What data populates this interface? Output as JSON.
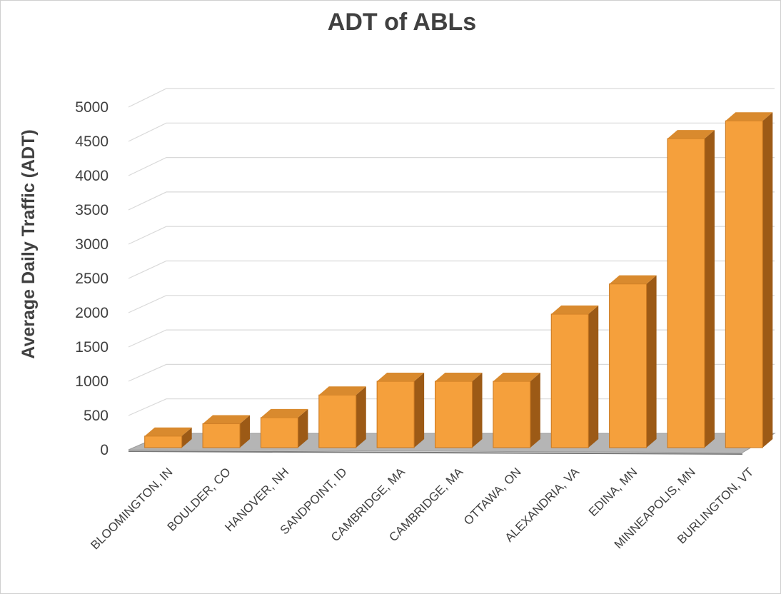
{
  "chart_data": {
    "type": "bar",
    "title": "ADT of ABLs",
    "xlabel": "",
    "ylabel": "Average Daily Traffic (ADT)",
    "ylim": [
      0,
      5000
    ],
    "yticks": [
      "0",
      "500",
      "1000",
      "1500",
      "2000",
      "2500",
      "3000",
      "3500",
      "4000",
      "4500",
      "5000"
    ],
    "grid": true,
    "three_d": true,
    "legend": "none",
    "categories": [
      "BLOOMINGTON, IN",
      "BOULDER, CO",
      "HANOVER, NH",
      "SANDPOINT, ID",
      "CAMBRIDGE, MA",
      "CAMBRIDGE, MA",
      "OTTAWA, ON",
      "ALEXANDRIA, VA",
      "EDINA, MN",
      "MINNEAPOLIS, MN",
      "BURLINGTON, VT"
    ],
    "values": [
      200,
      380,
      470,
      800,
      1000,
      1000,
      1000,
      1980,
      2420,
      4540,
      4800
    ],
    "colors": {
      "bar_front": "#f5a03c",
      "bar_top": "#d98a2e",
      "bar_side": "#9c5a16",
      "floor": "#b5b5b5",
      "grid": "#d9d9d9",
      "text": "#404040"
    }
  }
}
